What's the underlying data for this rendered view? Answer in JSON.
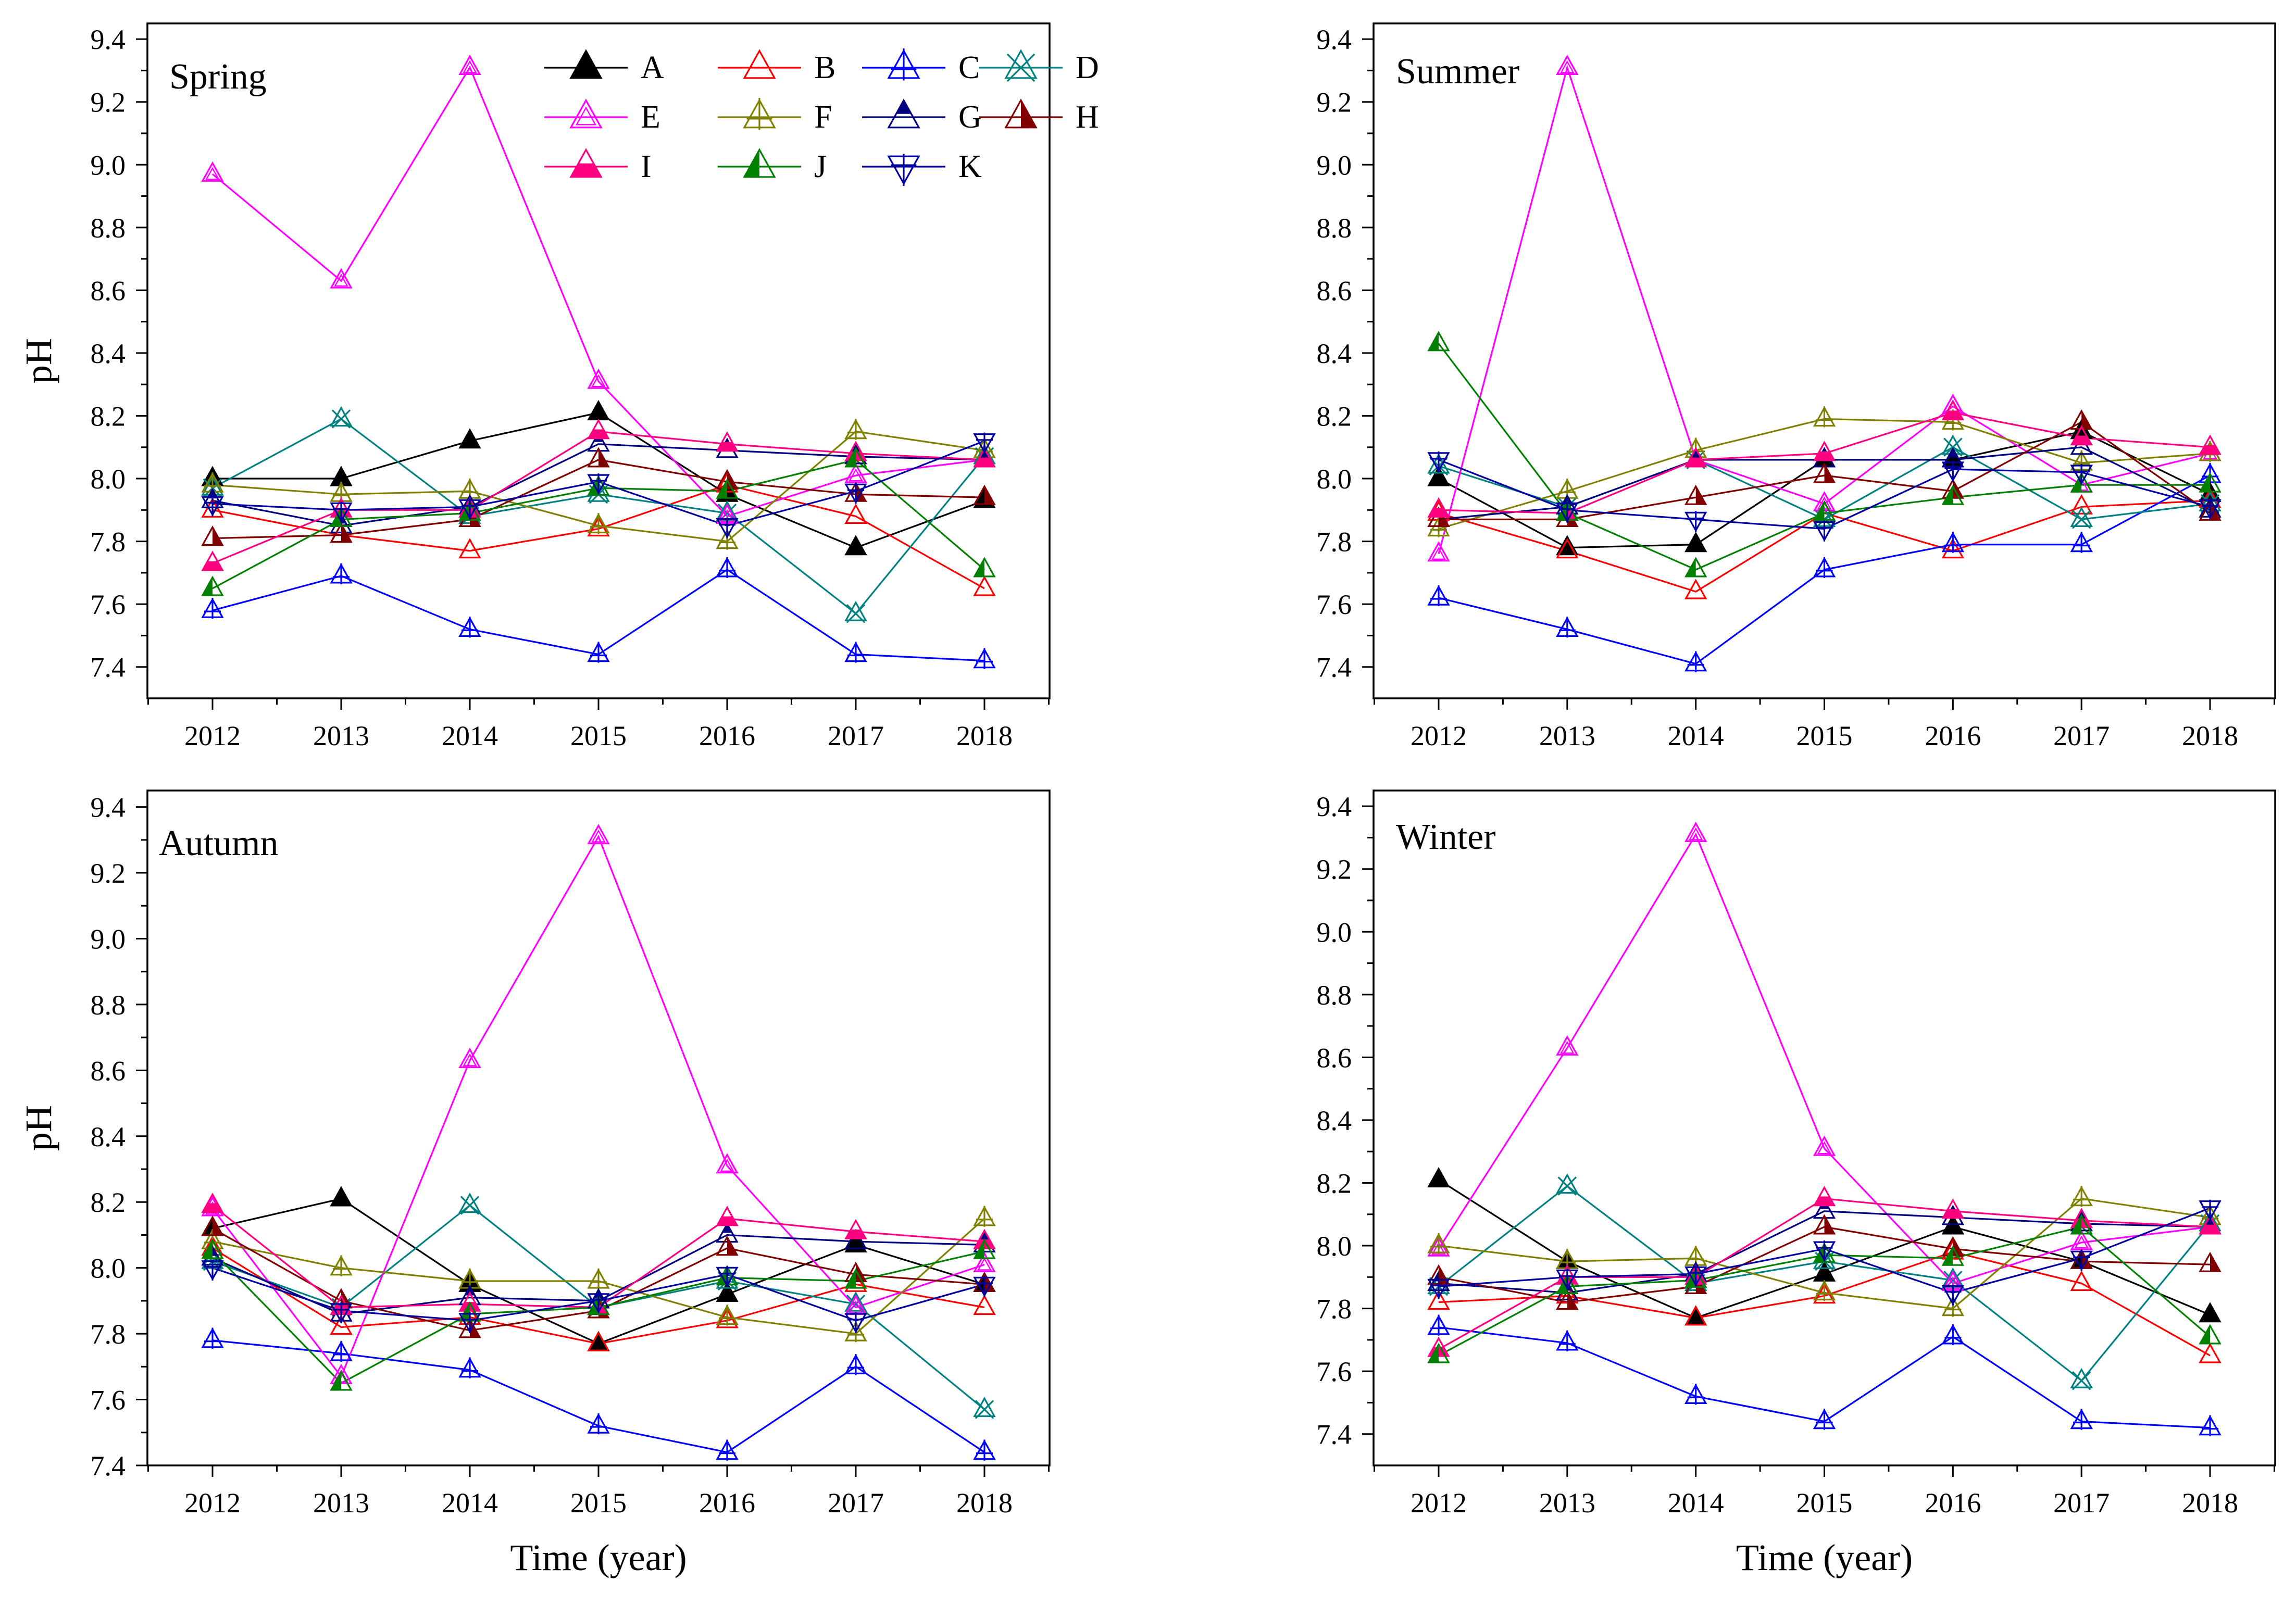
{
  "chart_data": [
    {
      "type": "line",
      "title": "Spring",
      "xlabel": "",
      "ylabel": "pH",
      "x": [
        2012,
        2013,
        2014,
        2015,
        2016,
        2017,
        2018
      ],
      "ylim": [
        7.3,
        9.45
      ],
      "yticks": [
        "7.4",
        "7.6",
        "7.8",
        "8.0",
        "8.2",
        "8.4",
        "8.6",
        "8.8",
        "9.0",
        "9.2",
        "9.4"
      ],
      "xticks": [
        "2012",
        "2013",
        "2014",
        "2015",
        "2016",
        "2017",
        "2018"
      ],
      "legend": [
        "A",
        "B",
        "C",
        "D",
        "E",
        "F",
        "G",
        "H",
        "I",
        "J",
        "K"
      ],
      "series": [
        {
          "name": "A",
          "values": [
            8.0,
            8.0,
            8.12,
            8.21,
            7.95,
            7.78,
            7.93
          ]
        },
        {
          "name": "B",
          "values": [
            7.9,
            7.82,
            7.77,
            7.84,
            7.98,
            7.88,
            7.65
          ]
        },
        {
          "name": "C",
          "values": [
            7.58,
            7.69,
            7.52,
            7.44,
            7.71,
            7.44,
            7.42
          ]
        },
        {
          "name": "D",
          "values": [
            7.97,
            8.19,
            7.88,
            7.95,
            7.89,
            7.57,
            8.07
          ]
        },
        {
          "name": "E",
          "values": [
            8.97,
            8.63,
            9.31,
            8.31,
            7.88,
            8.01,
            8.06
          ]
        },
        {
          "name": "F",
          "values": [
            7.98,
            7.95,
            7.96,
            7.85,
            7.8,
            8.15,
            8.09
          ]
        },
        {
          "name": "G",
          "values": [
            7.93,
            7.85,
            7.91,
            8.11,
            8.09,
            8.07,
            8.06
          ]
        },
        {
          "name": "H",
          "values": [
            7.81,
            7.82,
            7.87,
            8.06,
            7.99,
            7.95,
            7.94
          ]
        },
        {
          "name": "I",
          "values": [
            7.73,
            7.9,
            7.9,
            8.15,
            8.11,
            8.08,
            8.06
          ]
        },
        {
          "name": "J",
          "values": [
            7.65,
            7.87,
            7.89,
            7.97,
            7.96,
            8.06,
            7.71
          ]
        },
        {
          "name": "K",
          "values": [
            7.92,
            7.9,
            7.91,
            7.99,
            7.85,
            7.96,
            8.12
          ]
        }
      ]
    },
    {
      "type": "line",
      "title": "Summer",
      "xlabel": "",
      "ylabel": "",
      "x": [
        2012,
        2013,
        2014,
        2015,
        2016,
        2017,
        2018
      ],
      "ylim": [
        7.3,
        9.45
      ],
      "yticks": [
        "7.4",
        "7.6",
        "7.8",
        "8.0",
        "8.2",
        "8.4",
        "8.6",
        "8.8",
        "9.0",
        "9.2",
        "9.4"
      ],
      "xticks": [
        "2012",
        "2013",
        "2014",
        "2015",
        "2016",
        "2017",
        "2018"
      ],
      "series": [
        {
          "name": "A",
          "values": [
            8.0,
            7.78,
            7.79,
            8.06,
            8.06,
            8.15,
            7.95
          ]
        },
        {
          "name": "B",
          "values": [
            7.89,
            7.77,
            7.64,
            7.89,
            7.77,
            7.91,
            7.93
          ]
        },
        {
          "name": "C",
          "values": [
            7.62,
            7.52,
            7.41,
            7.71,
            7.79,
            7.79,
            8.01
          ]
        },
        {
          "name": "D",
          "values": [
            8.04,
            7.91,
            8.06,
            7.87,
            8.1,
            7.87,
            7.92
          ]
        },
        {
          "name": "E",
          "values": [
            7.76,
            9.31,
            8.06,
            7.92,
            8.23,
            7.98,
            8.08
          ]
        },
        {
          "name": "F",
          "values": [
            7.84,
            7.96,
            8.09,
            8.19,
            8.18,
            8.05,
            8.08
          ]
        },
        {
          "name": "G",
          "values": [
            7.87,
            7.91,
            8.06,
            8.06,
            8.06,
            8.1,
            7.9
          ]
        },
        {
          "name": "H",
          "values": [
            7.87,
            7.87,
            7.94,
            8.01,
            7.96,
            8.18,
            7.89
          ]
        },
        {
          "name": "I",
          "values": [
            7.9,
            7.89,
            8.06,
            8.08,
            8.21,
            8.13,
            8.1
          ]
        },
        {
          "name": "J",
          "values": [
            8.43,
            7.89,
            7.71,
            7.89,
            7.94,
            7.98,
            7.98
          ]
        },
        {
          "name": "K",
          "values": [
            8.06,
            7.9,
            7.87,
            7.84,
            8.03,
            8.02,
            7.91
          ]
        }
      ]
    },
    {
      "type": "line",
      "title": "Autumn",
      "xlabel": "Time (year)",
      "ylabel": "pH",
      "x": [
        2012,
        2013,
        2014,
        2015,
        2016,
        2017,
        2018
      ],
      "ylim": [
        7.4,
        9.45
      ],
      "yticks": [
        "7.4",
        "7.6",
        "7.8",
        "8.0",
        "8.2",
        "8.4",
        "8.6",
        "8.8",
        "9.0",
        "9.2",
        "9.4"
      ],
      "xticks": [
        "2012",
        "2013",
        "2014",
        "2015",
        "2016",
        "2017",
        "2018"
      ],
      "series": [
        {
          "name": "A",
          "values": [
            8.12,
            8.21,
            7.95,
            7.77,
            7.92,
            8.07,
            7.95
          ]
        },
        {
          "name": "B",
          "values": [
            8.06,
            7.82,
            7.85,
            7.77,
            7.84,
            7.95,
            7.88
          ]
        },
        {
          "name": "C",
          "values": [
            7.78,
            7.74,
            7.69,
            7.52,
            7.44,
            7.7,
            7.44
          ]
        },
        {
          "name": "D",
          "values": [
            8.02,
            7.88,
            8.19,
            7.88,
            7.96,
            7.89,
            7.57
          ]
        },
        {
          "name": "E",
          "values": [
            8.18,
            7.67,
            8.63,
            9.31,
            8.31,
            7.88,
            8.01
          ]
        },
        {
          "name": "F",
          "values": [
            8.08,
            8.0,
            7.96,
            7.96,
            7.85,
            7.8,
            8.15
          ]
        },
        {
          "name": "G",
          "values": [
            8.03,
            7.86,
            7.91,
            7.9,
            8.1,
            8.08,
            8.07
          ]
        },
        {
          "name": "H",
          "values": [
            8.12,
            7.9,
            7.81,
            7.87,
            8.06,
            7.98,
            7.95
          ]
        },
        {
          "name": "I",
          "values": [
            8.19,
            7.88,
            7.89,
            7.88,
            8.15,
            8.11,
            8.08
          ]
        },
        {
          "name": "J",
          "values": [
            8.05,
            7.65,
            7.86,
            7.88,
            7.97,
            7.96,
            8.05
          ]
        },
        {
          "name": "K",
          "values": [
            8.0,
            7.87,
            7.84,
            7.9,
            7.98,
            7.84,
            7.95
          ]
        }
      ]
    },
    {
      "type": "line",
      "title": "Winter",
      "xlabel": "Time (year)",
      "ylabel": "",
      "x": [
        2012,
        2013,
        2014,
        2015,
        2016,
        2017,
        2018
      ],
      "ylim": [
        7.3,
        9.45
      ],
      "yticks": [
        "7.4",
        "7.6",
        "7.8",
        "8.0",
        "8.2",
        "8.4",
        "8.6",
        "8.8",
        "9.0",
        "9.2",
        "9.4"
      ],
      "xticks": [
        "2012",
        "2013",
        "2014",
        "2015",
        "2016",
        "2017",
        "2018"
      ],
      "series": [
        {
          "name": "A",
          "values": [
            8.21,
            7.95,
            7.77,
            7.91,
            8.06,
            7.95,
            7.78
          ]
        },
        {
          "name": "B",
          "values": [
            7.82,
            7.84,
            7.77,
            7.84,
            7.98,
            7.88,
            7.65
          ]
        },
        {
          "name": "C",
          "values": [
            7.74,
            7.69,
            7.52,
            7.44,
            7.71,
            7.44,
            7.42
          ]
        },
        {
          "name": "D",
          "values": [
            7.87,
            8.19,
            7.88,
            7.95,
            7.89,
            7.57,
            8.07
          ]
        },
        {
          "name": "E",
          "values": [
            7.99,
            8.63,
            9.31,
            8.31,
            7.88,
            8.01,
            8.06
          ]
        },
        {
          "name": "F",
          "values": [
            8.0,
            7.95,
            7.96,
            7.85,
            7.8,
            8.15,
            8.09
          ]
        },
        {
          "name": "G",
          "values": [
            7.88,
            7.85,
            7.91,
            8.11,
            8.09,
            8.07,
            8.06
          ]
        },
        {
          "name": "H",
          "values": [
            7.9,
            7.82,
            7.87,
            8.06,
            7.99,
            7.95,
            7.94
          ]
        },
        {
          "name": "I",
          "values": [
            7.67,
            7.9,
            7.9,
            8.15,
            8.11,
            8.08,
            8.06
          ]
        },
        {
          "name": "J",
          "values": [
            7.65,
            7.87,
            7.89,
            7.97,
            7.96,
            8.06,
            7.71
          ]
        },
        {
          "name": "K",
          "values": [
            7.87,
            7.9,
            7.91,
            7.99,
            7.85,
            7.96,
            8.12
          ]
        }
      ]
    }
  ],
  "series_styles": [
    {
      "name": "A",
      "color": "#000000",
      "marker": "triangle",
      "fill": "full"
    },
    {
      "name": "B",
      "color": "#ff0000",
      "marker": "triangle",
      "fill": "none"
    },
    {
      "name": "C",
      "color": "#0000ff",
      "marker": "triangle-plus",
      "fill": "none"
    },
    {
      "name": "D",
      "color": "#008080",
      "marker": "triangle-x",
      "fill": "none"
    },
    {
      "name": "E",
      "color": "#ff00ff",
      "marker": "triangle-double",
      "fill": "none"
    },
    {
      "name": "F",
      "color": "#808000",
      "marker": "triangle-plus",
      "fill": "none"
    },
    {
      "name": "G",
      "color": "#000080",
      "marker": "triangle",
      "fill": "top"
    },
    {
      "name": "H",
      "color": "#800000",
      "marker": "triangle",
      "fill": "right"
    },
    {
      "name": "I",
      "color": "#ff0080",
      "marker": "triangle",
      "fill": "bottom"
    },
    {
      "name": "J",
      "color": "#008000",
      "marker": "triangle",
      "fill": "left"
    },
    {
      "name": "K",
      "color": "#0000a0",
      "marker": "inverted-triangle-plus",
      "fill": "none"
    }
  ]
}
